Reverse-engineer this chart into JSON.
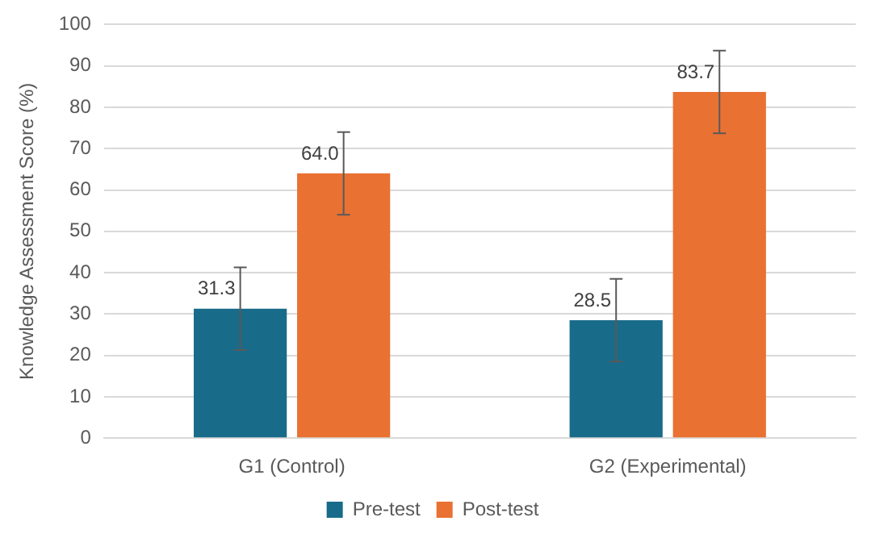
{
  "chart_data": {
    "type": "bar",
    "ylabel": "Knowledge Assessment Score (%)",
    "categories": [
      "G1 (Control)",
      "G2 (Experimental)"
    ],
    "series": [
      {
        "name": "Pre-test",
        "color": "#196b8a",
        "values": [
          31.3,
          28.5
        ],
        "value_labels": [
          "31.3",
          "28.5"
        ],
        "errors": [
          10,
          10
        ]
      },
      {
        "name": "Post-test",
        "color": "#e97132",
        "values": [
          64.0,
          83.7
        ],
        "value_labels": [
          "64.0",
          "83.7"
        ],
        "errors": [
          10,
          10
        ]
      }
    ],
    "ylim": [
      0,
      100
    ],
    "yticks": [
      0,
      10,
      20,
      30,
      40,
      50,
      60,
      70,
      80,
      90,
      100
    ],
    "grid": "y",
    "legend": "bottom"
  }
}
